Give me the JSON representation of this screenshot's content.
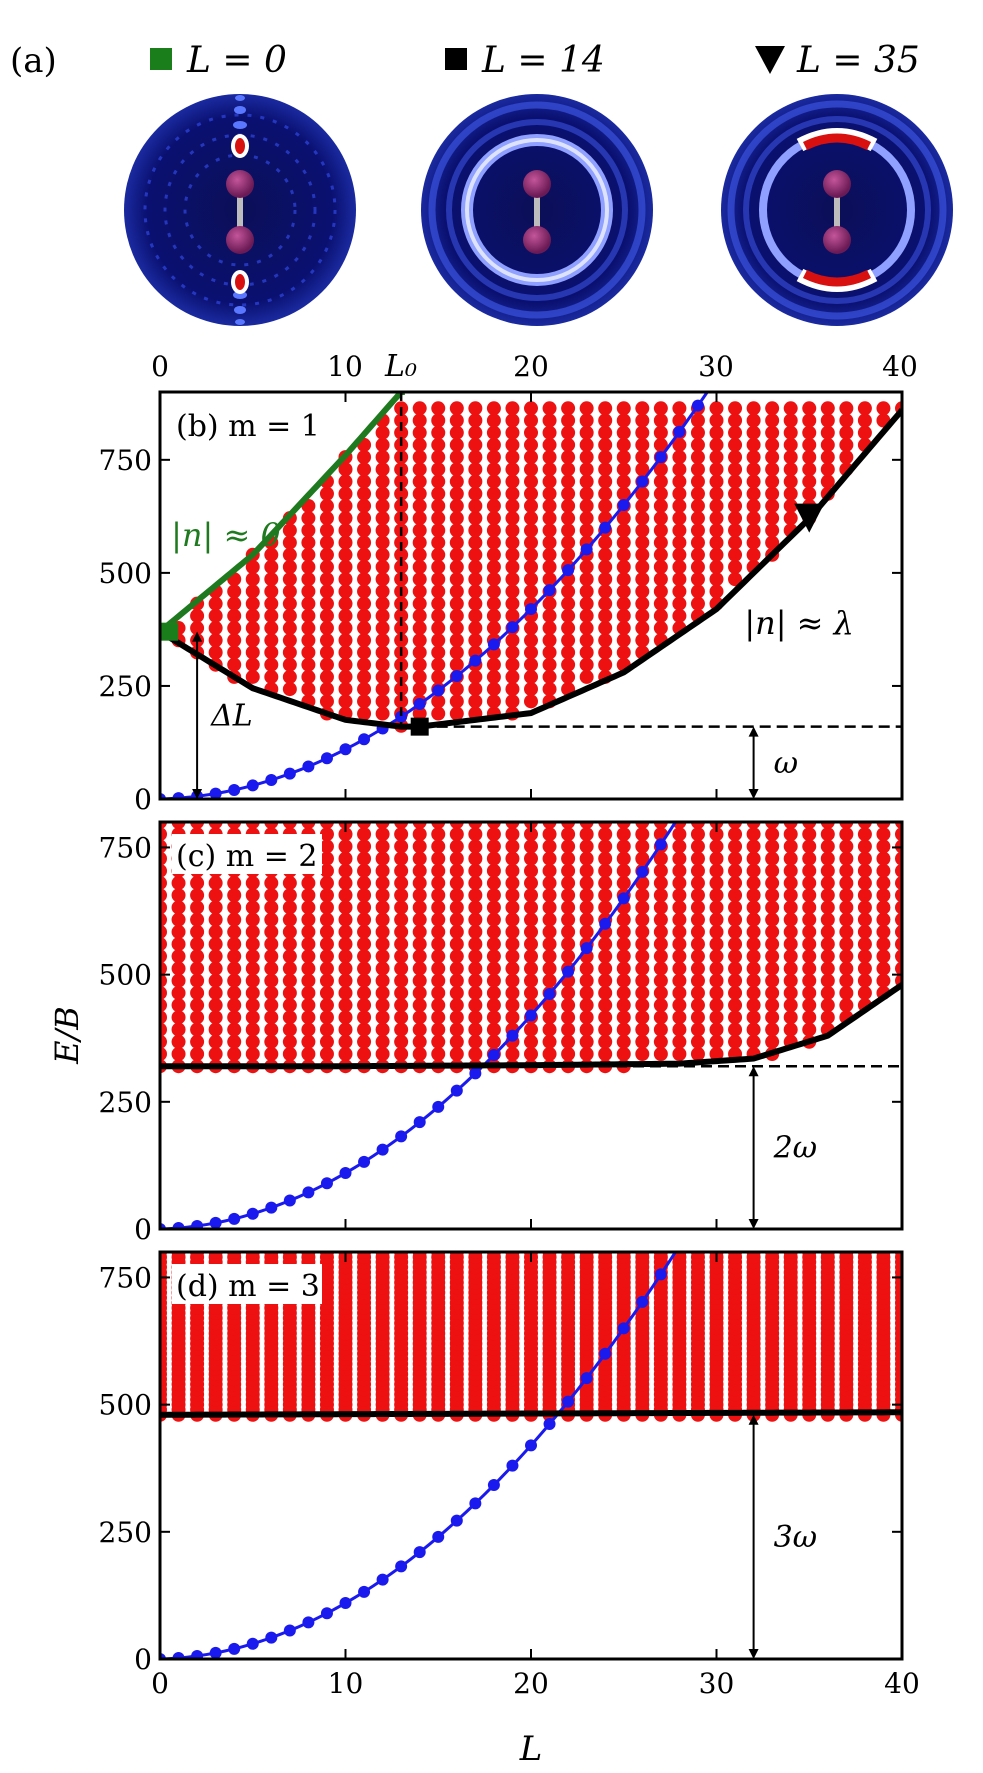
{
  "panel_a": {
    "label": "(a)",
    "legend": [
      {
        "marker": "square",
        "color": "#1a7f1a",
        "text": "L = 0",
        "Lval": 0
      },
      {
        "marker": "square",
        "color": "#000000",
        "text": "L = 14",
        "Lval": 14
      },
      {
        "marker": "triangle-down",
        "color": "#000000",
        "text": "L = 35",
        "Lval": 35
      }
    ]
  },
  "axis_labels": {
    "x": "L",
    "y": "E/B",
    "L0": "L₀",
    "L0_value": 13
  },
  "colors": {
    "band": "#ee1111",
    "blue": "#1a1aee",
    "black": "#000000",
    "green": "#1f7a1f"
  },
  "chart_data": [
    {
      "type": "scatter",
      "panel": "(b)",
      "title": "(b) m = 1",
      "xlim": [
        0,
        40
      ],
      "ylim": [
        0,
        900
      ],
      "xticks": [
        0,
        10,
        20,
        30,
        40
      ],
      "yticks": [
        0,
        250,
        500,
        750
      ],
      "top_xtick_labels": [
        "0",
        "10",
        "20",
        "30",
        "40"
      ],
      "series": [
        {
          "name": "band_lower_|n|≈λ",
          "color": "#000000",
          "x": [
            0,
            5,
            10,
            13,
            14,
            20,
            25,
            30,
            35,
            40
          ],
          "y": [
            370,
            245,
            175,
            160,
            160,
            190,
            280,
            420,
            620,
            860
          ]
        },
        {
          "name": "|n|≈0",
          "color": "#1f7a1f",
          "x": [
            0,
            5,
            10,
            13
          ],
          "y": [
            370,
            540,
            760,
            900
          ]
        },
        {
          "name": "rotor_EB",
          "color": "#1a1aee",
          "x": [
            0,
            5,
            10,
            15,
            20,
            25,
            28,
            29
          ],
          "y": [
            0,
            26,
            105,
            235,
            420,
            650,
            820,
            880
          ]
        }
      ],
      "points": [
        {
          "label": "L=0",
          "x": 0.5,
          "y": 370
        },
        {
          "label": "L=14",
          "x": 14,
          "y": 160
        },
        {
          "label": "L=35",
          "x": 35,
          "y": 620
        }
      ],
      "annotations": [
        {
          "text": "|n| ≈ 0",
          "color": "#1f7a1f"
        },
        {
          "text": "|n| ≈ λ",
          "color": "#000000"
        },
        {
          "text": "ΔL",
          "arrow_at_L": 2,
          "from_E": 0,
          "to_E": 370
        },
        {
          "text": "ω",
          "arrow_at_L": 32,
          "from_E": 0,
          "to_E": 160
        }
      ]
    },
    {
      "type": "scatter",
      "panel": "(c)",
      "title": "(c) m = 2",
      "xlim": [
        0,
        40
      ],
      "ylim": [
        0,
        800
      ],
      "xticks": [
        0,
        10,
        20,
        30,
        40
      ],
      "yticks": [
        0,
        250,
        500,
        750
      ],
      "series": [
        {
          "name": "band_lower",
          "color": "#000000",
          "x": [
            0,
            10,
            20,
            28,
            32,
            36,
            40
          ],
          "y": [
            320,
            320,
            322,
            325,
            335,
            380,
            480
          ]
        },
        {
          "name": "rotor_EB",
          "color": "#1a1aee",
          "x": [
            0,
            5,
            10,
            15,
            20,
            25,
            28
          ],
          "y": [
            0,
            26,
            105,
            235,
            420,
            650,
            800
          ]
        }
      ],
      "annotations": [
        {
          "text": "2ω",
          "arrow_at_L": 32,
          "from_E": 0,
          "to_E": 320
        }
      ]
    },
    {
      "type": "scatter",
      "panel": "(d)",
      "title": "(d) m = 3",
      "xlim": [
        0,
        40
      ],
      "ylim": [
        0,
        800
      ],
      "xticks": [
        0,
        10,
        20,
        30,
        40
      ],
      "yticks": [
        0,
        250,
        500,
        750
      ],
      "xtick_labels": [
        "0",
        "10",
        "20",
        "30",
        "40"
      ],
      "series": [
        {
          "name": "band_lower",
          "color": "#000000",
          "x": [
            0,
            40
          ],
          "y": [
            480,
            485
          ]
        },
        {
          "name": "rotor_EB",
          "color": "#1a1aee",
          "x": [
            0,
            5,
            10,
            15,
            20,
            25,
            28
          ],
          "y": [
            0,
            26,
            105,
            235,
            420,
            650,
            800
          ]
        }
      ],
      "annotations": [
        {
          "text": "3ω",
          "arrow_at_L": 32,
          "from_E": 0,
          "to_E": 480
        }
      ]
    }
  ]
}
